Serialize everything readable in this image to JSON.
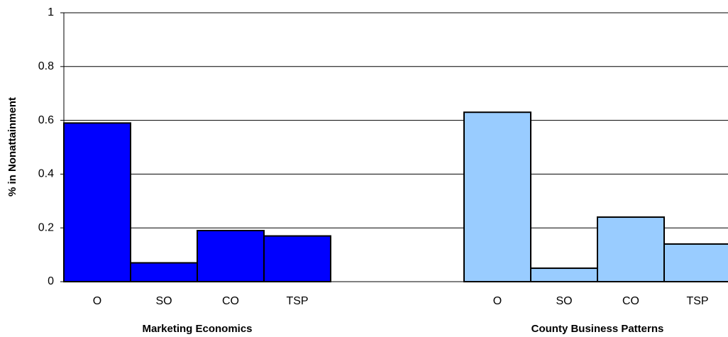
{
  "chart_data": {
    "type": "bar",
    "y_label": "% in Nonattainment",
    "groups": [
      {
        "name": "Marketing Economics",
        "color": "#0000ff",
        "categories": [
          "O",
          "SO",
          "CO",
          "TSP"
        ],
        "values": [
          0.59,
          0.07,
          0.19,
          0.17
        ]
      },
      {
        "name": "County Business Patterns",
        "color": "#99ccff",
        "categories": [
          "O",
          "SO",
          "CO",
          "TSP"
        ],
        "values": [
          0.63,
          0.05,
          0.24,
          0.14
        ]
      }
    ],
    "ylim": [
      0,
      1
    ],
    "yticks": [
      0,
      0.2,
      0.4,
      0.6,
      0.8,
      1
    ],
    "grid": true
  }
}
